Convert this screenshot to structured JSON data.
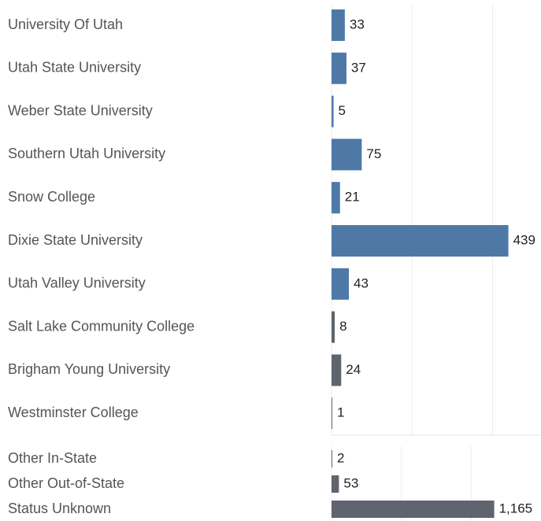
{
  "chart_data": [
    {
      "type": "bar",
      "orientation": "horizontal",
      "categories": [
        "University Of Utah",
        "Utah State University",
        "Weber State University",
        "Southern Utah University",
        "Snow College",
        "Dixie State University",
        "Utah Valley University",
        "Salt Lake Community College",
        "Brigham Young University",
        "Westminster College"
      ],
      "values": [
        33,
        37,
        5,
        75,
        21,
        439,
        43,
        8,
        24,
        1
      ],
      "colors": [
        "#4e79a7",
        "#4e79a7",
        "#4e79a7",
        "#4e79a7",
        "#4e79a7",
        "#4e79a7",
        "#4e79a7",
        "#5f646e",
        "#5f646e",
        "#5f646e"
      ],
      "xlim": [
        0,
        520
      ],
      "xticks": [
        0,
        200,
        400
      ],
      "grid": true
    },
    {
      "type": "bar",
      "orientation": "horizontal",
      "categories": [
        "Other In-State",
        "Other Out-of-State",
        "Status Unknown"
      ],
      "values": [
        2,
        53,
        1165
      ],
      "value_labels": [
        "2",
        "53",
        "1,165"
      ],
      "colors": [
        "#5f646e",
        "#5f646e",
        "#5f646e"
      ],
      "xlim": [
        0,
        1500
      ],
      "xticks": [
        0,
        500,
        1000
      ],
      "grid": true
    }
  ]
}
